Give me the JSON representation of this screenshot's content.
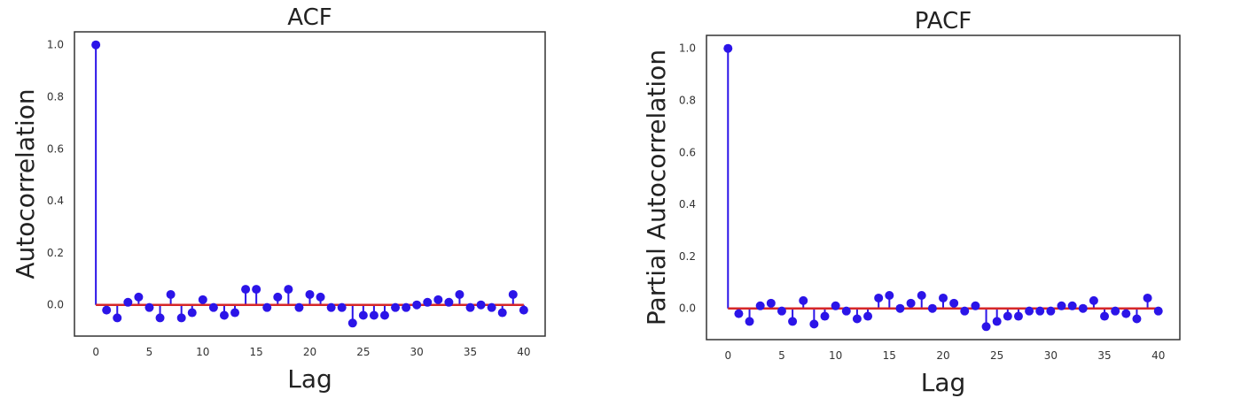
{
  "chart_data": [
    {
      "type": "stem",
      "title": "ACF",
      "xlabel": "Lag",
      "ylabel": "Autocorrelation",
      "xlim": [
        -2,
        42
      ],
      "ylim": [
        -0.12,
        1.05
      ],
      "xticks": [
        0,
        5,
        10,
        15,
        20,
        25,
        30,
        35,
        40
      ],
      "xtick_labels": [
        "0",
        "5",
        "10",
        "15",
        "20",
        "25",
        "30",
        "35",
        "40"
      ],
      "yticks": [
        0.0,
        0.2,
        0.4,
        0.6,
        0.8,
        1.0
      ],
      "ytick_labels": [
        "0.0",
        "0.2",
        "0.4",
        "0.6",
        "0.8",
        "1.0"
      ],
      "grid": false,
      "baseline": 0,
      "stem_color": "#2b14e8",
      "baseline_color": "#d62728",
      "x": [
        0,
        1,
        2,
        3,
        4,
        5,
        6,
        7,
        8,
        9,
        10,
        11,
        12,
        13,
        14,
        15,
        16,
        17,
        18,
        19,
        20,
        21,
        22,
        23,
        24,
        25,
        26,
        27,
        28,
        29,
        30,
        31,
        32,
        33,
        34,
        35,
        36,
        37,
        38,
        39,
        40
      ],
      "values": [
        1.0,
        -0.02,
        -0.05,
        0.01,
        0.03,
        -0.01,
        -0.05,
        0.04,
        -0.05,
        -0.03,
        0.02,
        -0.01,
        -0.04,
        -0.03,
        0.06,
        0.06,
        -0.01,
        0.03,
        0.06,
        -0.01,
        0.04,
        0.03,
        -0.01,
        -0.01,
        -0.07,
        -0.04,
        -0.04,
        -0.04,
        -0.01,
        -0.01,
        0.0,
        0.01,
        0.02,
        0.01,
        0.04,
        -0.01,
        0.0,
        -0.01,
        -0.03,
        0.04,
        -0.02
      ]
    },
    {
      "type": "stem",
      "title": "PACF",
      "xlabel": "Lag",
      "ylabel": "Partial Autocorrelation",
      "xlim": [
        -2,
        42
      ],
      "ylim": [
        -0.12,
        1.05
      ],
      "xticks": [
        0,
        5,
        10,
        15,
        20,
        25,
        30,
        35,
        40
      ],
      "xtick_labels": [
        "0",
        "5",
        "10",
        "15",
        "20",
        "25",
        "30",
        "35",
        "40"
      ],
      "yticks": [
        0.0,
        0.2,
        0.4,
        0.6,
        0.8,
        1.0
      ],
      "ytick_labels": [
        "0.0",
        "0.2",
        "0.4",
        "0.6",
        "0.8",
        "1.0"
      ],
      "grid": false,
      "baseline": 0,
      "stem_color": "#2b14e8",
      "baseline_color": "#d62728",
      "x": [
        0,
        1,
        2,
        3,
        4,
        5,
        6,
        7,
        8,
        9,
        10,
        11,
        12,
        13,
        14,
        15,
        16,
        17,
        18,
        19,
        20,
        21,
        22,
        23,
        24,
        25,
        26,
        27,
        28,
        29,
        30,
        31,
        32,
        33,
        34,
        35,
        36,
        37,
        38,
        39,
        40
      ],
      "values": [
        1.0,
        -0.02,
        -0.05,
        0.01,
        0.02,
        -0.01,
        -0.05,
        0.03,
        -0.06,
        -0.03,
        0.01,
        -0.01,
        -0.04,
        -0.03,
        0.04,
        0.05,
        0.0,
        0.02,
        0.05,
        0.0,
        0.04,
        0.02,
        -0.01,
        0.01,
        -0.07,
        -0.05,
        -0.03,
        -0.03,
        -0.01,
        -0.01,
        -0.01,
        0.01,
        0.01,
        0.0,
        0.03,
        -0.03,
        -0.01,
        -0.02,
        -0.04,
        0.04,
        -0.01
      ]
    }
  ]
}
